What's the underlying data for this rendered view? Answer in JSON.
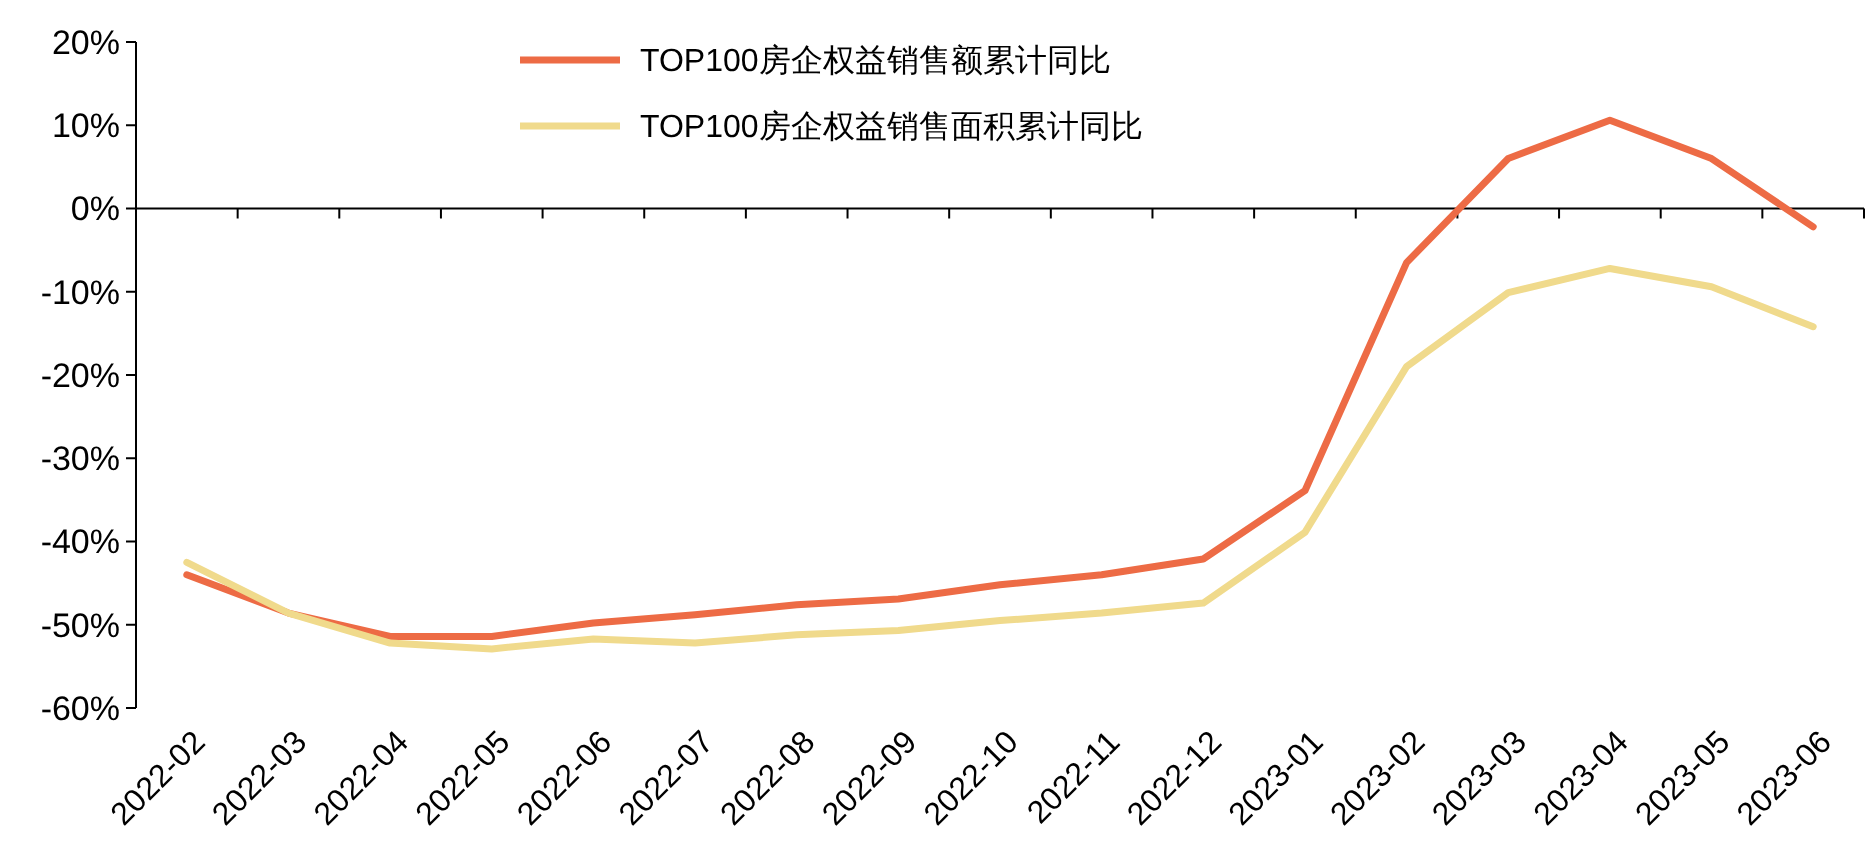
{
  "chart_data": {
    "type": "line",
    "categories": [
      "2022-02",
      "2022-03",
      "2022-04",
      "2022-05",
      "2022-06",
      "2022-07",
      "2022-08",
      "2022-09",
      "2022-10",
      "2022-11",
      "2022-12",
      "2023-01",
      "2023-02",
      "2023-03",
      "2023-04",
      "2023-05",
      "2023-06"
    ],
    "series": [
      {
        "name": "TOP100房企权益销售额累计同比",
        "color": "#ed6b45",
        "values": [
          -44.0,
          -48.6,
          -51.4,
          -51.4,
          -49.8,
          -48.8,
          -47.6,
          -46.9,
          -45.2,
          -44.0,
          -42.1,
          -33.9,
          -6.5,
          6.0,
          10.6,
          6.0,
          -2.2
        ]
      },
      {
        "name": "TOP100房企权益销售面积累计同比",
        "color": "#f0da8c",
        "values": [
          -42.5,
          -48.6,
          -52.2,
          -52.9,
          -51.7,
          -52.2,
          -51.2,
          -50.7,
          -49.5,
          -48.6,
          -47.4,
          -38.9,
          -19.0,
          -10.1,
          -7.2,
          -9.4,
          -14.2
        ]
      }
    ],
    "ylim": [
      -60,
      20
    ],
    "yticks": [
      {
        "value": -60,
        "label": "-60%"
      },
      {
        "value": -50,
        "label": "-50%"
      },
      {
        "value": -40,
        "label": "-40%"
      },
      {
        "value": -30,
        "label": "-30%"
      },
      {
        "value": -20,
        "label": "-20%"
      },
      {
        "value": -10,
        "label": "-10%"
      },
      {
        "value": 0,
        "label": "0%"
      },
      {
        "value": 10,
        "label": "10%"
      },
      {
        "value": 20,
        "label": "20%"
      }
    ],
    "legend": "top",
    "marker": "none",
    "line_style": "solid"
  }
}
